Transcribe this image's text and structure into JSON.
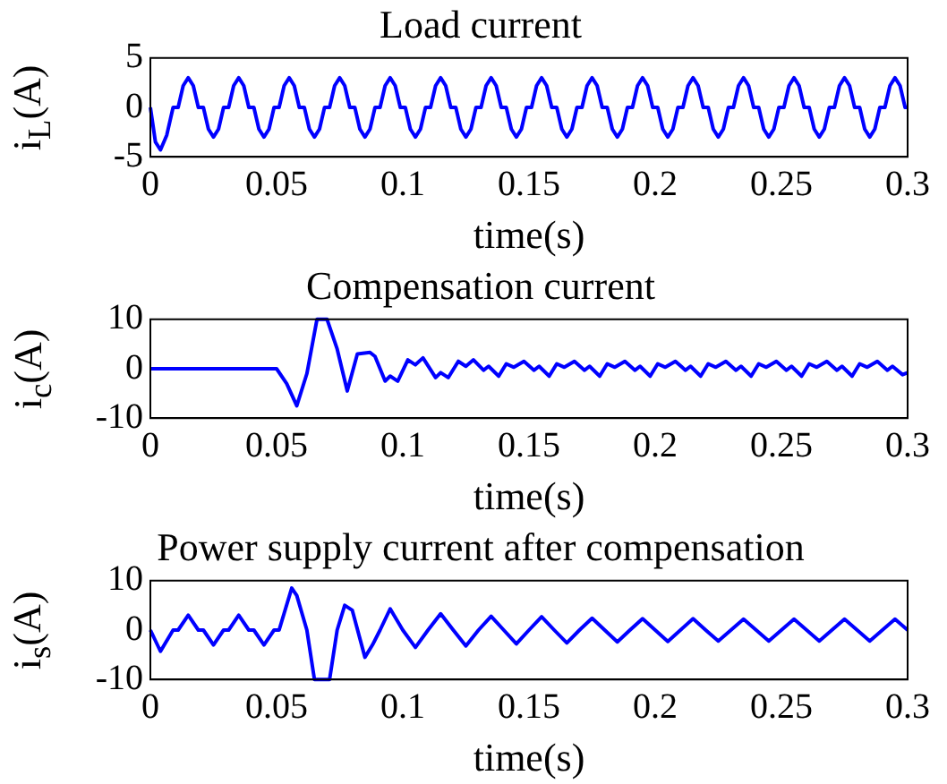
{
  "chart_data": [
    {
      "type": "line",
      "title": "Load current",
      "xlabel": "time(s)",
      "ylabel": "i$_{L}$(A)",
      "xlim": [
        0,
        0.3
      ],
      "xticks": [
        0,
        0.05,
        0.1,
        0.15,
        0.2,
        0.25,
        0.3
      ],
      "ylim": [
        -5,
        5
      ],
      "yticks": [
        -5,
        0,
        5
      ],
      "grid": false,
      "series": [
        {
          "color": "#0000ff",
          "x": [
            0,
            0.002,
            0.004,
            0.0065,
            0.009,
            0.011,
            0.013,
            0.015,
            0.017,
            0.019,
            0.021,
            0.023,
            0.025,
            0.027,
            0.029,
            0.031,
            0.033,
            0.035,
            0.037,
            0.039,
            0.041,
            0.043,
            0.045,
            0.047,
            0.049,
            0.051,
            0.053,
            0.055,
            0.057,
            0.059,
            0.061,
            0.063,
            0.065,
            0.067,
            0.069,
            0.071,
            0.073,
            0.075,
            0.077,
            0.079,
            0.081,
            0.083,
            0.085,
            0.087,
            0.089,
            0.091,
            0.093,
            0.095,
            0.097,
            0.099,
            0.101,
            0.103,
            0.105,
            0.107,
            0.109,
            0.111,
            0.113,
            0.115,
            0.117,
            0.119,
            0.121,
            0.123,
            0.125,
            0.127,
            0.129,
            0.131,
            0.133,
            0.135,
            0.137,
            0.139,
            0.141,
            0.143,
            0.145,
            0.147,
            0.149,
            0.151,
            0.153,
            0.155,
            0.157,
            0.159,
            0.161,
            0.163,
            0.165,
            0.167,
            0.169,
            0.171,
            0.173,
            0.175,
            0.177,
            0.179,
            0.181,
            0.183,
            0.185,
            0.187,
            0.189,
            0.191,
            0.193,
            0.195,
            0.197,
            0.199,
            0.201,
            0.203,
            0.205,
            0.207,
            0.209,
            0.211,
            0.213,
            0.215,
            0.217,
            0.219,
            0.221,
            0.223,
            0.225,
            0.227,
            0.229,
            0.231,
            0.233,
            0.235,
            0.237,
            0.239,
            0.241,
            0.243,
            0.245,
            0.247,
            0.249,
            0.251,
            0.253,
            0.255,
            0.257,
            0.259,
            0.261,
            0.263,
            0.265,
            0.267,
            0.269,
            0.271,
            0.273,
            0.275,
            0.277,
            0.279,
            0.281,
            0.283,
            0.285,
            0.287,
            0.289,
            0.291,
            0.293,
            0.295,
            0.297,
            0.299,
            0.3
          ],
          "values": [
            0,
            -3.5,
            -4.3,
            -2.8,
            0,
            0,
            2.2,
            3,
            2.2,
            0,
            0,
            -2.2,
            -3,
            -2.2,
            0,
            0,
            2.2,
            3,
            2.2,
            0,
            0,
            -2.2,
            -3,
            -2.2,
            0,
            0,
            2.2,
            3,
            2.2,
            0,
            0,
            -2.2,
            -3,
            -2.2,
            0,
            0,
            2.2,
            3,
            2.2,
            0,
            0,
            -2.2,
            -3,
            -2.2,
            0,
            0,
            2.2,
            3,
            2.2,
            0,
            0,
            -2.2,
            -3,
            -2.2,
            0,
            0,
            2.2,
            3,
            2.2,
            0,
            0,
            -2.2,
            -3,
            -2.2,
            0,
            0,
            2.2,
            3,
            2.2,
            0,
            0,
            -2.2,
            -3,
            -2.2,
            0,
            0,
            2.2,
            3,
            2.2,
            0,
            0,
            -2.2,
            -3,
            -2.2,
            0,
            0,
            2.2,
            3,
            2.2,
            0,
            0,
            -2.2,
            -3,
            -2.2,
            0,
            0,
            2.2,
            3,
            2.2,
            0,
            0,
            -2.2,
            -3,
            -2.2,
            0,
            0,
            2.2,
            3,
            2.2,
            0,
            0,
            -2.2,
            -3,
            -2.2,
            0,
            0,
            2.2,
            3,
            2.2,
            0,
            0,
            -2.2,
            -3,
            -2.2,
            0,
            0,
            2.2,
            3,
            2.2,
            0,
            0,
            -2.2,
            -3,
            -2.2,
            0,
            0,
            2.2,
            3,
            2.2,
            0,
            0,
            -2.2,
            -3,
            -2.2,
            0,
            0,
            2.2,
            3,
            2.2,
            0,
            0
          ]
        }
      ]
    },
    {
      "type": "line",
      "title": "Compensation current",
      "xlabel": "time(s)",
      "ylabel": "i$_{c}$(A)",
      "xlim": [
        0,
        0.3
      ],
      "xticks": [
        0,
        0.05,
        0.1,
        0.15,
        0.2,
        0.25,
        0.3
      ],
      "ylim": [
        -10,
        10
      ],
      "yticks": [
        -10,
        0,
        10
      ],
      "grid": false,
      "series": [
        {
          "color": "#0000ff",
          "x": [
            0,
            0.05,
            0.054,
            0.058,
            0.062,
            0.066,
            0.07,
            0.074,
            0.078,
            0.082,
            0.087,
            0.089,
            0.093,
            0.095,
            0.098,
            0.102,
            0.105,
            0.108,
            0.113,
            0.115,
            0.118,
            0.122,
            0.125,
            0.128,
            0.132,
            0.134,
            0.138,
            0.141,
            0.144,
            0.148,
            0.152,
            0.154,
            0.158,
            0.161,
            0.164,
            0.168,
            0.172,
            0.174,
            0.178,
            0.181,
            0.184,
            0.188,
            0.192,
            0.194,
            0.198,
            0.201,
            0.204,
            0.208,
            0.212,
            0.214,
            0.218,
            0.221,
            0.224,
            0.228,
            0.232,
            0.234,
            0.238,
            0.241,
            0.244,
            0.248,
            0.252,
            0.254,
            0.258,
            0.261,
            0.264,
            0.268,
            0.272,
            0.274,
            0.278,
            0.281,
            0.284,
            0.288,
            0.292,
            0.294,
            0.298,
            0.3
          ],
          "values": [
            0,
            0,
            -3,
            -7.5,
            -1,
            10,
            10,
            4,
            -4.5,
            3,
            3.3,
            2.5,
            -2.5,
            -1.5,
            -2.5,
            1.8,
            0.8,
            2.2,
            -1.8,
            -0.8,
            -1.8,
            1.5,
            0.5,
            1.8,
            -0.3,
            0.5,
            -1.5,
            1,
            0.3,
            1.5,
            -0.3,
            0.5,
            -1.5,
            1,
            0.3,
            1.5,
            -0.3,
            0.5,
            -1.5,
            1,
            0.3,
            1.5,
            -0.3,
            0.5,
            -1.5,
            1,
            0.3,
            1.5,
            -0.3,
            0.5,
            -1.5,
            1,
            0.3,
            1.5,
            -0.3,
            0.5,
            -1.5,
            1,
            0.3,
            1.5,
            -0.3,
            0.5,
            -1.5,
            1,
            0.3,
            1.5,
            -0.3,
            0.5,
            -1.5,
            1,
            0.3,
            1.5,
            -0.3,
            0.5,
            -1.2,
            -0.8
          ]
        }
      ]
    },
    {
      "type": "line",
      "title": "Power supply current after compensation",
      "xlabel": "time(s)",
      "ylabel": "i$_{s}$(A)",
      "xlim": [
        0,
        0.3
      ],
      "xticks": [
        0,
        0.05,
        0.1,
        0.15,
        0.2,
        0.25,
        0.3
      ],
      "ylim": [
        -10,
        10
      ],
      "yticks": [
        -10,
        0,
        10
      ],
      "grid": false,
      "series": [
        {
          "color": "#0000ff",
          "x": [
            0,
            0.004,
            0.009,
            0.011,
            0.015,
            0.019,
            0.021,
            0.025,
            0.029,
            0.031,
            0.035,
            0.039,
            0.041,
            0.045,
            0.049,
            0.051,
            0.056,
            0.058,
            0.062,
            0.065,
            0.071,
            0.074,
            0.077,
            0.08,
            0.085,
            0.088,
            0.091,
            0.095,
            0.1,
            0.105,
            0.11,
            0.115,
            0.12,
            0.125,
            0.13,
            0.135,
            0.14,
            0.145,
            0.15,
            0.155,
            0.16,
            0.165,
            0.17,
            0.175,
            0.18,
            0.185,
            0.19,
            0.195,
            0.2,
            0.205,
            0.21,
            0.215,
            0.22,
            0.225,
            0.23,
            0.235,
            0.24,
            0.245,
            0.25,
            0.255,
            0.26,
            0.265,
            0.27,
            0.275,
            0.28,
            0.285,
            0.29,
            0.295,
            0.3
          ],
          "values": [
            0,
            -4.3,
            0,
            0,
            3,
            0,
            0,
            -3,
            0,
            0,
            3,
            0,
            0,
            -3,
            0,
            0,
            8.5,
            7,
            0,
            -10,
            -10,
            0,
            5,
            4,
            -5.5,
            -3,
            0,
            4.3,
            0,
            -3.5,
            0,
            3.3,
            0,
            -3.2,
            0,
            2.8,
            0,
            -2.8,
            0,
            2.7,
            0,
            -2.6,
            0,
            2.4,
            0,
            -2.4,
            0,
            2.3,
            0,
            -2.3,
            0,
            2.3,
            0,
            -2.2,
            0,
            2.2,
            0,
            -2.2,
            0,
            2.2,
            0,
            -2.2,
            0,
            2.2,
            0,
            -2.2,
            0,
            2.2,
            0
          ]
        }
      ]
    }
  ]
}
